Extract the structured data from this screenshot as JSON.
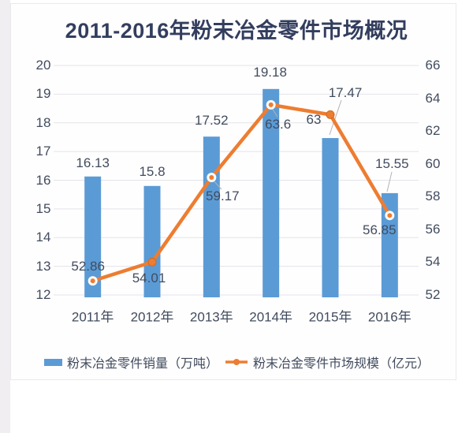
{
  "chart_data": {
    "type": "combo-bar-line",
    "title": "2011-2016年粉末冶金零件市场概况",
    "categories": [
      "2011年",
      "2012年",
      "2013年",
      "2014年",
      "2015年",
      "2016年"
    ],
    "series": [
      {
        "name": "粉末冶金零件销量（万吨）",
        "type": "bar",
        "axis": "left",
        "color": "#5B9BD5",
        "values": [
          16.13,
          15.8,
          17.52,
          19.18,
          17.47,
          15.55
        ],
        "labels": [
          "16.13",
          "15.8",
          "17.52",
          "19.18",
          "17.47",
          "15.55"
        ]
      },
      {
        "name": "粉末冶金零件市场规模（亿元）",
        "type": "line",
        "axis": "right",
        "color": "#ED7D31",
        "values": [
          52.86,
          54.01,
          59.17,
          63.6,
          63,
          56.85
        ],
        "labels": [
          "52.86",
          "54.01",
          "59.17",
          "63.6",
          "63",
          "56.85"
        ]
      }
    ],
    "left_axis": {
      "min": 12,
      "max": 20,
      "step": 1,
      "ticks": [
        "20",
        "19",
        "18",
        "17",
        "16",
        "15",
        "14",
        "13",
        "12"
      ]
    },
    "right_axis": {
      "min": 52,
      "max": 66,
      "step": 2,
      "ticks": [
        "66",
        "64",
        "62",
        "60",
        "58",
        "56",
        "54",
        "52"
      ]
    },
    "grid": true,
    "gridline_color": "#e3e3e9",
    "legend_position": "bottom",
    "title_color": "#333e5e",
    "label_color": "#414c5e"
  }
}
